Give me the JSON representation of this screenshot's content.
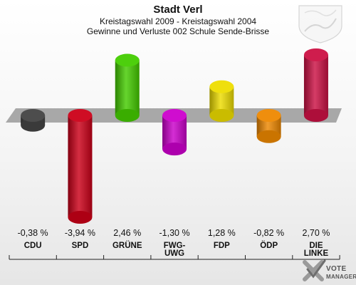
{
  "chart_data": {
    "type": "bar",
    "title": "Stadt Verl",
    "subtitle_lines": [
      "Kreistagswahl 2009 - Kreistagswahl 2004",
      "Gewinne und Verluste 002 Schule Sende-Brisse"
    ],
    "categories": [
      "CDU",
      "SPD",
      "GRÜNE",
      "FWG-UWG",
      "FDP",
      "ÖDP",
      "DIE LINKE"
    ],
    "category_lines": [
      [
        "CDU"
      ],
      [
        "SPD"
      ],
      [
        "GRÜNE"
      ],
      [
        "FWG-",
        "UWG"
      ],
      [
        "FDP"
      ],
      [
        "ÖDP"
      ],
      [
        "DIE",
        "LINKE"
      ]
    ],
    "values": [
      -0.38,
      -3.94,
      2.46,
      -1.3,
      1.28,
      -0.82,
      2.7
    ],
    "value_labels": [
      "-0,38 %",
      "-3,94 %",
      "2,46 %",
      "-1,30 %",
      "1,28 %",
      "-0,82 %",
      "2,70 %"
    ],
    "colors": [
      "#444444",
      "#cc0018",
      "#44cc00",
      "#cc00cc",
      "#eedd00",
      "#ee8800",
      "#cc1144"
    ],
    "ylim": [
      -3.94,
      2.7
    ]
  },
  "branding": {
    "logo_line1": "VOTE",
    "logo_line2": "MANAGER",
    "logo_icon": "vote-manager-x-icon",
    "crest_icon": "coat-of-arms-icon"
  }
}
